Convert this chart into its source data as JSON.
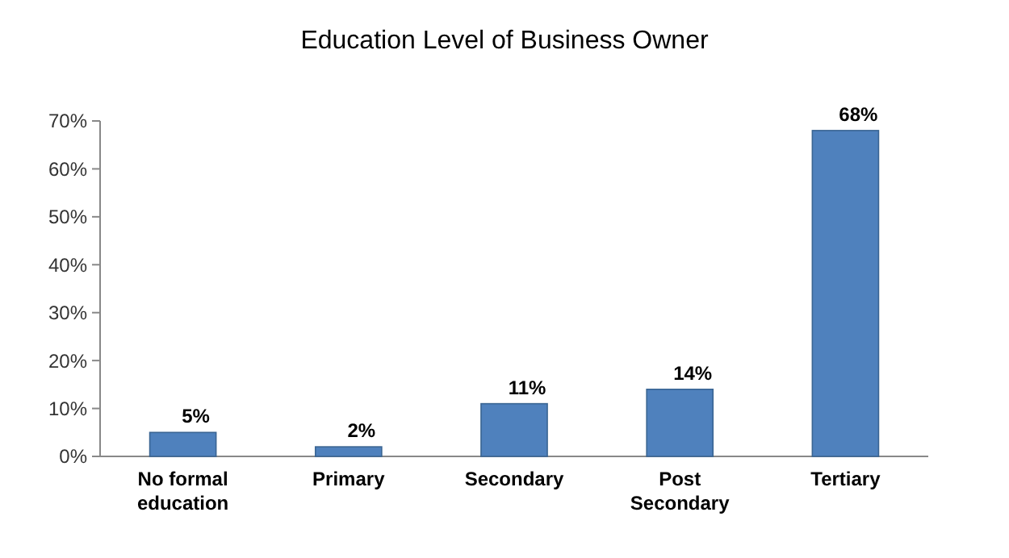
{
  "chart_data": {
    "type": "bar",
    "title": "Education Level of Business Owner",
    "categories": [
      "No formal education",
      "Primary",
      "Secondary",
      "Post Secondary",
      "Tertiary"
    ],
    "values": [
      5,
      2,
      11,
      14,
      68
    ],
    "color": "#4f81bd",
    "value_labels": [
      "5%",
      "2%",
      "11%",
      "14%",
      "68%"
    ],
    "ylim": [
      0,
      70
    ],
    "yticks": [
      {
        "value": 0,
        "label": "0%"
      },
      {
        "value": 10,
        "label": "10%"
      },
      {
        "value": 20,
        "label": "20%"
      },
      {
        "value": 30,
        "label": "30%"
      },
      {
        "value": 40,
        "label": "40%"
      },
      {
        "value": 50,
        "label": "50%"
      },
      {
        "value": 60,
        "label": "60%"
      },
      {
        "value": 70,
        "label": "70%"
      }
    ]
  }
}
